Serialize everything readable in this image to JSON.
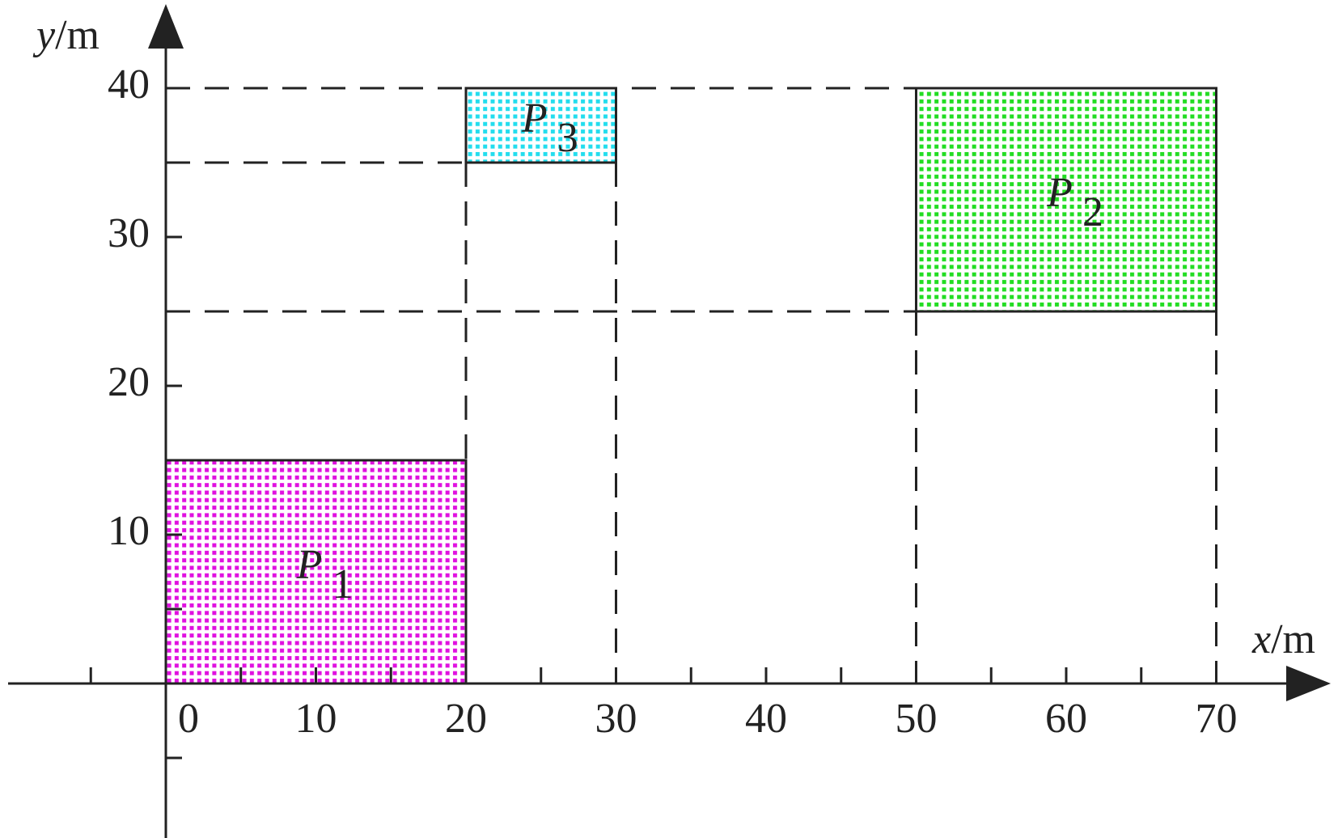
{
  "axes": {
    "x_label": {
      "var": "x",
      "unit": "/m"
    },
    "y_label": {
      "var": "y",
      "unit": "/m"
    },
    "xticks": [
      0,
      10,
      20,
      30,
      40,
      50,
      60,
      70
    ],
    "xminor": [
      -5,
      5,
      15,
      25,
      35,
      45,
      55,
      65
    ],
    "yticks": [
      10,
      20,
      30,
      40
    ],
    "yminor": [
      -5,
      5,
      15,
      25,
      35
    ]
  },
  "rects": [
    {
      "label": "P",
      "subscript": "1",
      "x": [
        0,
        20
      ],
      "y": [
        0,
        15
      ],
      "color": "#e010e0"
    },
    {
      "label": "P",
      "subscript": "2",
      "x": [
        50,
        70
      ],
      "y": [
        25,
        40
      ],
      "color": "#22dd22"
    },
    {
      "label": "P",
      "subscript": "3",
      "x": [
        20,
        30
      ],
      "y": [
        35,
        40
      ],
      "color": "#22ddee"
    }
  ]
}
